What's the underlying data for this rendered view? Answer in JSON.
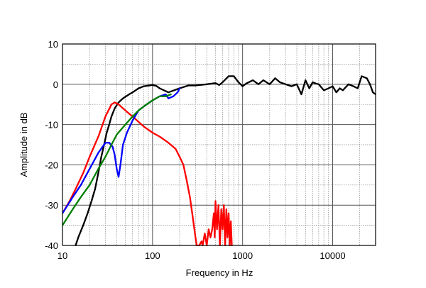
{
  "chart_data": {
    "type": "line",
    "title": "",
    "xlabel": "Frequency in Hz",
    "ylabel": "Amplitude in dB",
    "x_scale": "log",
    "xlim": [
      10,
      30000
    ],
    "ylim": [
      -40,
      10
    ],
    "grid": true,
    "legend": "none",
    "x_ticks": [
      {
        "value": 10,
        "label": "10"
      },
      {
        "value": 100,
        "label": "100"
      },
      {
        "value": 1000,
        "label": "1000"
      },
      {
        "value": 10000,
        "label": "10000"
      }
    ],
    "y_ticks": [
      {
        "value": 10,
        "label": "10"
      },
      {
        "value": 0,
        "label": "0"
      },
      {
        "value": -10,
        "label": "-10"
      },
      {
        "value": -20,
        "label": "-20"
      },
      {
        "value": -30,
        "label": "-30"
      },
      {
        "value": -40,
        "label": "-40"
      }
    ],
    "series": [
      {
        "color": "#000000",
        "points": [
          [
            14,
            -40
          ],
          [
            15,
            -38
          ],
          [
            17,
            -35
          ],
          [
            19,
            -32
          ],
          [
            21,
            -29
          ],
          [
            23,
            -26
          ],
          [
            25,
            -22
          ],
          [
            27,
            -18
          ],
          [
            29,
            -15
          ],
          [
            31,
            -12
          ],
          [
            33,
            -10
          ],
          [
            35,
            -8
          ],
          [
            38,
            -6
          ],
          [
            42,
            -4.5
          ],
          [
            47,
            -3.5
          ],
          [
            55,
            -2.5
          ],
          [
            60,
            -2
          ],
          [
            70,
            -1
          ],
          [
            80,
            -0.5
          ],
          [
            100,
            -0.2
          ],
          [
            110,
            -0.4
          ],
          [
            120,
            -1
          ],
          [
            150,
            -2
          ],
          [
            200,
            -1
          ],
          [
            250,
            -0.3
          ],
          [
            300,
            -0.3
          ],
          [
            400,
            0
          ],
          [
            500,
            0.3
          ],
          [
            550,
            -0.2
          ],
          [
            600,
            0.5
          ],
          [
            700,
            2
          ],
          [
            800,
            2
          ],
          [
            900,
            0.5
          ],
          [
            1000,
            -0.5
          ],
          [
            1100,
            0.2
          ],
          [
            1300,
            1
          ],
          [
            1500,
            0
          ],
          [
            1700,
            1
          ],
          [
            2000,
            0
          ],
          [
            2300,
            1.5
          ],
          [
            2600,
            0.5
          ],
          [
            3000,
            0
          ],
          [
            3500,
            -0.5
          ],
          [
            4000,
            0
          ],
          [
            4500,
            -2.5
          ],
          [
            5000,
            1
          ],
          [
            5500,
            -1
          ],
          [
            6000,
            0.5
          ],
          [
            6500,
            0.2
          ],
          [
            7000,
            0
          ],
          [
            8000,
            -1.5
          ],
          [
            9000,
            -1
          ],
          [
            10000,
            -0.5
          ],
          [
            11000,
            -2
          ],
          [
            12000,
            -1
          ],
          [
            13000,
            -1.5
          ],
          [
            15000,
            0
          ],
          [
            17000,
            -0.5
          ],
          [
            19000,
            -1
          ],
          [
            21000,
            2
          ],
          [
            24000,
            1.5
          ],
          [
            26000,
            0
          ],
          [
            28000,
            -2
          ],
          [
            30000,
            -2.5
          ]
        ]
      },
      {
        "color": "#ff0000",
        "points": [
          [
            10,
            -32
          ],
          [
            12,
            -29
          ],
          [
            14,
            -26
          ],
          [
            17,
            -22
          ],
          [
            20,
            -18
          ],
          [
            25,
            -13
          ],
          [
            30,
            -8
          ],
          [
            35,
            -5
          ],
          [
            38,
            -4.5
          ],
          [
            42,
            -5
          ],
          [
            50,
            -6.5
          ],
          [
            60,
            -8
          ],
          [
            80,
            -10.5
          ],
          [
            100,
            -12
          ],
          [
            120,
            -13
          ],
          [
            150,
            -14.5
          ],
          [
            180,
            -16
          ],
          [
            200,
            -18
          ],
          [
            220,
            -20
          ],
          [
            240,
            -24
          ],
          [
            260,
            -28
          ],
          [
            280,
            -33
          ],
          [
            300,
            -38
          ],
          [
            310,
            -40
          ],
          [
            330,
            -40
          ],
          [
            350,
            -39
          ],
          [
            360,
            -40
          ],
          [
            380,
            -37
          ],
          [
            400,
            -40
          ],
          [
            420,
            -36
          ],
          [
            440,
            -38
          ],
          [
            460,
            -36
          ],
          [
            480,
            -32
          ],
          [
            490,
            -38
          ],
          [
            500,
            -29
          ],
          [
            520,
            -36
          ],
          [
            540,
            -30
          ],
          [
            560,
            -40
          ],
          [
            580,
            -31
          ],
          [
            600,
            -36
          ],
          [
            620,
            -30
          ],
          [
            640,
            -40
          ],
          [
            660,
            -31
          ],
          [
            680,
            -38
          ],
          [
            700,
            -32
          ],
          [
            720,
            -40
          ],
          [
            740,
            -34
          ],
          [
            760,
            -40
          ]
        ]
      },
      {
        "color": "#0000ff",
        "points": [
          [
            10,
            -32
          ],
          [
            13,
            -28
          ],
          [
            16,
            -25
          ],
          [
            20,
            -21
          ],
          [
            25,
            -17
          ],
          [
            30,
            -14.5
          ],
          [
            33,
            -14.5
          ],
          [
            36,
            -15.5
          ],
          [
            38,
            -17.5
          ],
          [
            40,
            -21
          ],
          [
            42,
            -23
          ],
          [
            44,
            -20
          ],
          [
            47,
            -15
          ],
          [
            52,
            -12
          ],
          [
            60,
            -9
          ],
          [
            70,
            -6.5
          ],
          [
            80,
            -5.5
          ],
          [
            100,
            -4
          ],
          [
            120,
            -3
          ],
          [
            140,
            -2.5
          ],
          [
            150,
            -3.5
          ],
          [
            170,
            -3
          ],
          [
            190,
            -2
          ],
          [
            200,
            -1
          ]
        ]
      },
      {
        "color": "#008000",
        "points": [
          [
            10,
            -35
          ],
          [
            13,
            -31
          ],
          [
            16,
            -28
          ],
          [
            20,
            -25
          ],
          [
            25,
            -21
          ],
          [
            30,
            -18
          ],
          [
            35,
            -15
          ],
          [
            40,
            -12.5
          ],
          [
            50,
            -10
          ],
          [
            60,
            -8
          ],
          [
            70,
            -6.5
          ],
          [
            80,
            -5.5
          ],
          [
            100,
            -4
          ],
          [
            120,
            -3
          ],
          [
            140,
            -3
          ],
          [
            160,
            -2.5
          ]
        ]
      }
    ]
  }
}
